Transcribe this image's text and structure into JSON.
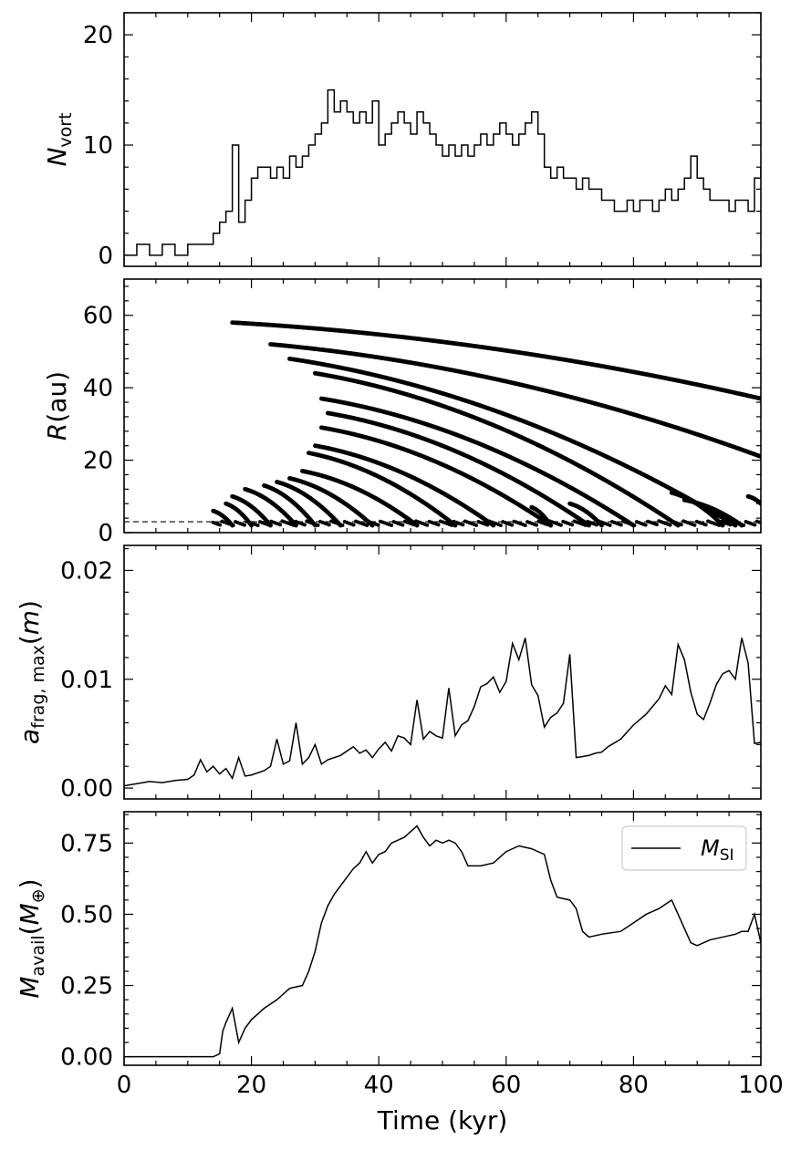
{
  "chart_data": [
    {
      "type": "line",
      "ylabel": "N_vort",
      "ylabel_parts": {
        "main": "N",
        "sub": "vort",
        "suffix": ""
      },
      "xlim": [
        0,
        100
      ],
      "ylim": [
        -1,
        22
      ],
      "yticks": [
        0,
        10,
        20
      ],
      "ytick_labels": [
        "0",
        "10",
        "20"
      ],
      "grid": false,
      "series": [
        {
          "style": "step",
          "x": [
            0,
            2,
            4,
            6,
            8,
            10,
            12,
            14,
            15,
            16,
            17,
            18,
            19,
            20,
            21,
            22,
            23,
            24,
            25,
            26,
            27,
            28,
            29,
            30,
            31,
            32,
            33,
            34,
            35,
            36,
            37,
            38,
            39,
            40,
            41,
            42,
            43,
            44,
            45,
            46,
            47,
            48,
            49,
            50,
            51,
            52,
            53,
            54,
            55,
            56,
            57,
            58,
            59,
            60,
            61,
            62,
            63,
            64,
            65,
            66,
            67,
            68,
            69,
            70,
            71,
            72,
            73,
            74,
            75,
            76,
            77,
            78,
            79,
            80,
            81,
            82,
            83,
            84,
            85,
            86,
            87,
            88,
            89,
            90,
            91,
            92,
            93,
            94,
            95,
            96,
            97,
            98,
            99,
            100
          ],
          "y": [
            0,
            1,
            0,
            1,
            0,
            1,
            1,
            2,
            3,
            4,
            10,
            3,
            5,
            7,
            8,
            8,
            7,
            8,
            7,
            9,
            8,
            9,
            10,
            11,
            12,
            15,
            13,
            14,
            13,
            12,
            13,
            12,
            14,
            10,
            11,
            12,
            13,
            12,
            11,
            13,
            12,
            11,
            10,
            9,
            10,
            9,
            10,
            9,
            10,
            11,
            10,
            11,
            12,
            11,
            10,
            11,
            12,
            13,
            11,
            8,
            7,
            8,
            7,
            7,
            6,
            7,
            6,
            6,
            5,
            5,
            4,
            4,
            5,
            4,
            5,
            5,
            4,
            5,
            6,
            5,
            6,
            7,
            9,
            7,
            6,
            5,
            5,
            5,
            4,
            5,
            5,
            4,
            7,
            8
          ]
        }
      ]
    },
    {
      "type": "scatter",
      "ylabel": "R(au)",
      "ylabel_parts": {
        "main": "R",
        "sub": "",
        "suffix": "(au)"
      },
      "xlim": [
        0,
        100
      ],
      "ylim": [
        0,
        70
      ],
      "yticks": [
        0,
        20,
        40,
        60
      ],
      "ytick_labels": [
        "0",
        "20",
        "40",
        "60"
      ],
      "grid": false,
      "reference_line": {
        "y": 3,
        "style": "dashed"
      },
      "tracks": [
        {
          "start": [
            17,
            58
          ],
          "end": [
            100,
            37
          ]
        },
        {
          "start": [
            23,
            52
          ],
          "end": [
            100,
            21
          ]
        },
        {
          "start": [
            26,
            48
          ],
          "end": [
            96,
            2
          ]
        },
        {
          "start": [
            30,
            44
          ],
          "end": [
            87,
            2
          ]
        },
        {
          "start": [
            31,
            37
          ],
          "end": [
            80,
            2
          ]
        },
        {
          "start": [
            32,
            33
          ],
          "end": [
            73,
            2
          ]
        },
        {
          "start": [
            31,
            29
          ],
          "end": [
            67,
            2
          ]
        },
        {
          "start": [
            30,
            24
          ],
          "end": [
            58,
            2
          ]
        },
        {
          "start": [
            29,
            22
          ],
          "end": [
            52,
            2
          ]
        },
        {
          "start": [
            28,
            17
          ],
          "end": [
            46,
            2
          ]
        },
        {
          "start": [
            26,
            15
          ],
          "end": [
            39,
            2
          ]
        },
        {
          "start": [
            24,
            14
          ],
          "end": [
            34,
            2
          ]
        },
        {
          "start": [
            22,
            13
          ],
          "end": [
            30,
            2
          ]
        },
        {
          "start": [
            19,
            12
          ],
          "end": [
            27,
            2
          ]
        },
        {
          "start": [
            17,
            10
          ],
          "end": [
            23,
            2
          ]
        },
        {
          "start": [
            16,
            8
          ],
          "end": [
            20,
            2
          ]
        },
        {
          "start": [
            14,
            6
          ],
          "end": [
            17,
            2
          ]
        },
        {
          "start": [
            70,
            8
          ],
          "end": [
            75,
            2
          ]
        },
        {
          "start": [
            64,
            7
          ],
          "end": [
            67,
            2
          ]
        },
        {
          "start": [
            86,
            11
          ],
          "end": [
            94,
            2
          ]
        },
        {
          "start": [
            88,
            9
          ],
          "end": [
            97,
            2
          ]
        },
        {
          "start": [
            98,
            10
          ],
          "end": [
            100,
            8
          ]
        }
      ],
      "floor_band": {
        "x": [
          14,
          100
        ],
        "y": 2
      }
    },
    {
      "type": "line",
      "ylabel": "a_frag,max(m)",
      "ylabel_parts": {
        "main": "a",
        "sub": "frag, max",
        "suffix": "(m)"
      },
      "xlim": [
        0,
        100
      ],
      "ylim": [
        -0.001,
        0.0223
      ],
      "yticks": [
        0.0,
        0.01,
        0.02
      ],
      "ytick_labels": [
        "0.00",
        "0.01",
        "0.02"
      ],
      "grid": false,
      "series": [
        {
          "style": "line",
          "x": [
            0,
            2,
            4,
            6,
            8,
            10,
            11,
            12,
            13,
            14,
            15,
            16,
            17,
            18,
            19,
            20,
            22,
            23,
            24,
            25,
            26,
            27,
            28,
            29,
            30,
            31,
            32,
            34,
            36,
            37,
            38,
            39,
            40,
            41,
            42,
            43,
            44,
            45,
            46,
            47,
            48,
            49,
            50,
            51,
            52,
            53,
            54,
            55,
            56,
            57,
            58,
            59,
            60,
            61,
            62,
            63,
            64,
            65,
            66,
            67,
            68,
            69,
            70,
            71,
            72,
            73,
            74,
            75,
            76,
            78,
            80,
            82,
            84,
            85,
            86,
            87,
            88,
            89,
            90,
            91,
            92,
            93,
            94,
            95,
            96,
            97,
            98,
            99,
            100
          ],
          "y": [
            0.0002,
            0.0004,
            0.0006,
            0.0005,
            0.0007,
            0.0008,
            0.0012,
            0.0026,
            0.0015,
            0.002,
            0.0013,
            0.0018,
            0.0009,
            0.0028,
            0.0011,
            0.0012,
            0.0016,
            0.002,
            0.0045,
            0.0022,
            0.0025,
            0.006,
            0.0022,
            0.0028,
            0.004,
            0.0022,
            0.0026,
            0.003,
            0.0038,
            0.0032,
            0.0035,
            0.0028,
            0.0036,
            0.0042,
            0.0034,
            0.0048,
            0.0046,
            0.004,
            0.0081,
            0.0045,
            0.0052,
            0.0048,
            0.0046,
            0.0092,
            0.0048,
            0.0058,
            0.0062,
            0.0075,
            0.0093,
            0.0096,
            0.0102,
            0.0088,
            0.0098,
            0.0133,
            0.0118,
            0.0138,
            0.0095,
            0.0085,
            0.0056,
            0.0065,
            0.0069,
            0.0078,
            0.0123,
            0.0028,
            0.0029,
            0.003,
            0.0032,
            0.0033,
            0.0038,
            0.0045,
            0.0058,
            0.0068,
            0.0082,
            0.0094,
            0.0086,
            0.0132,
            0.0118,
            0.0088,
            0.0068,
            0.0063,
            0.0078,
            0.0095,
            0.0105,
            0.0108,
            0.01,
            0.0138,
            0.0115,
            0.0041,
            0.0042
          ]
        }
      ]
    },
    {
      "type": "line",
      "ylabel": "M_avail(M_⊕)",
      "ylabel_parts": {
        "main": "M",
        "sub": "avail",
        "suffix": "(M",
        "suffix_sub": "⊕",
        "suffix_end": ")"
      },
      "xlabel": "Time (kyr)",
      "xlim": [
        0,
        100
      ],
      "ylim": [
        -0.03,
        0.86
      ],
      "xticks": [
        0,
        20,
        40,
        60,
        80,
        100
      ],
      "xtick_labels": [
        "0",
        "20",
        "40",
        "60",
        "80",
        "100"
      ],
      "yticks": [
        0.0,
        0.25,
        0.5,
        0.75
      ],
      "ytick_labels": [
        "0.00",
        "0.25",
        "0.50",
        "0.75"
      ],
      "grid": false,
      "legend": {
        "position": "top-right",
        "label_main": "M",
        "label_sub": "SI"
      },
      "series": [
        {
          "name": "M_SI",
          "style": "line",
          "x": [
            0,
            10,
            14,
            15,
            15.5,
            16,
            17,
            18,
            19,
            20,
            22,
            24,
            26,
            28,
            29,
            30,
            31,
            32,
            33,
            34,
            35,
            36,
            37,
            38,
            39,
            40,
            41,
            42,
            44,
            46,
            47,
            48,
            49,
            50,
            51,
            52,
            53,
            54,
            56,
            58,
            60,
            62,
            64,
            66,
            67,
            68,
            70,
            71,
            72,
            73,
            75,
            78,
            80,
            82,
            84,
            86,
            87,
            88,
            89,
            90,
            92,
            94,
            96,
            97,
            98,
            99,
            100
          ],
          "y": [
            0.0,
            0.0,
            0.0,
            0.01,
            0.09,
            0.12,
            0.17,
            0.05,
            0.1,
            0.13,
            0.17,
            0.2,
            0.24,
            0.25,
            0.3,
            0.37,
            0.47,
            0.53,
            0.57,
            0.6,
            0.63,
            0.66,
            0.68,
            0.72,
            0.68,
            0.71,
            0.72,
            0.75,
            0.77,
            0.81,
            0.77,
            0.74,
            0.76,
            0.75,
            0.76,
            0.75,
            0.72,
            0.67,
            0.67,
            0.68,
            0.72,
            0.74,
            0.73,
            0.71,
            0.62,
            0.56,
            0.55,
            0.52,
            0.44,
            0.42,
            0.43,
            0.44,
            0.47,
            0.5,
            0.52,
            0.55,
            0.5,
            0.45,
            0.4,
            0.39,
            0.41,
            0.42,
            0.43,
            0.44,
            0.44,
            0.5,
            0.4
          ]
        }
      ]
    }
  ]
}
